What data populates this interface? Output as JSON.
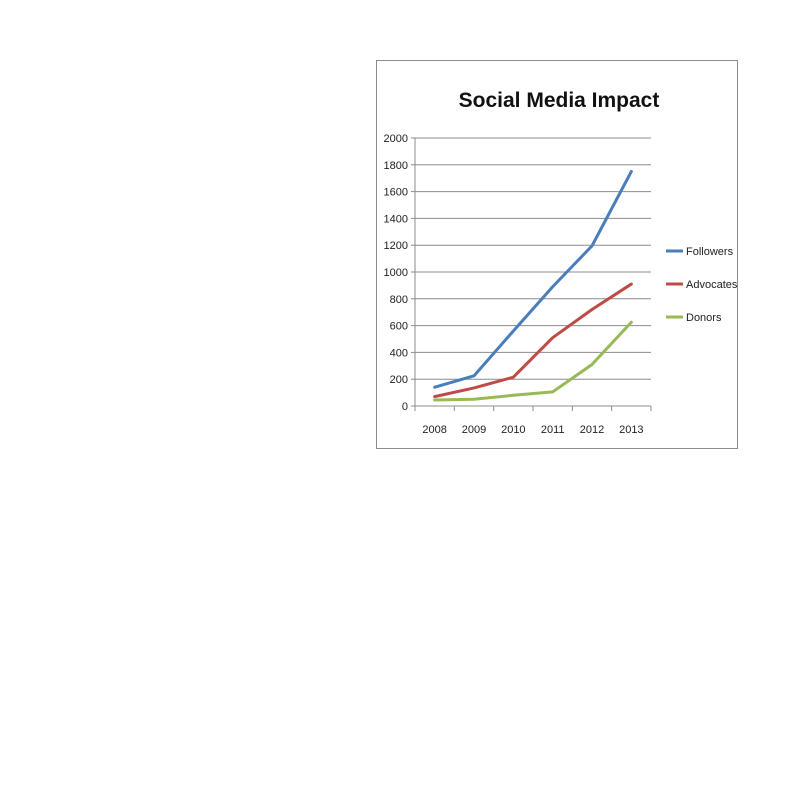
{
  "chart_data": {
    "type": "line",
    "title": "Social Media Impact",
    "categories": [
      "2008",
      "2009",
      "2010",
      "2011",
      "2012",
      "2013"
    ],
    "ylim": [
      0,
      2000
    ],
    "yticks": [
      0,
      200,
      400,
      600,
      800,
      1000,
      1200,
      1400,
      1600,
      1800,
      2000
    ],
    "grid": true,
    "legend_position": "right",
    "series": [
      {
        "name": "Followers",
        "color": "#4a7ebb",
        "values": [
          140,
          225,
          560,
          890,
          1195,
          1750
        ]
      },
      {
        "name": "Advocates",
        "color": "#be4b48",
        "values": [
          70,
          135,
          215,
          510,
          720,
          910
        ]
      },
      {
        "name": "Donors",
        "color": "#98b954",
        "values": [
          45,
          50,
          80,
          105,
          310,
          625
        ]
      }
    ]
  }
}
